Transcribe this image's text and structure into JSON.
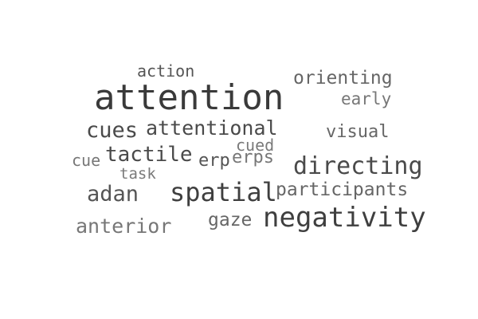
{
  "words": [
    {
      "text": "action",
      "color": "#555555"
    },
    {
      "text": "attention",
      "color": "#3a3a3a"
    },
    {
      "text": "orienting",
      "color": "#666666"
    },
    {
      "text": "early",
      "color": "#777777"
    },
    {
      "text": "cues",
      "color": "#4a4a4a"
    },
    {
      "text": "attentional",
      "color": "#4a4a4a"
    },
    {
      "text": "visual",
      "color": "#666666"
    },
    {
      "text": "cued",
      "color": "#7a7a7a"
    },
    {
      "text": "cue",
      "color": "#777777"
    },
    {
      "text": "tactile",
      "color": "#4a4a4a"
    },
    {
      "text": "erp",
      "color": "#555555"
    },
    {
      "text": "erps",
      "color": "#777777"
    },
    {
      "text": "directing",
      "color": "#4a4a4a"
    },
    {
      "text": "task",
      "color": "#7a7a7a"
    },
    {
      "text": "adan",
      "color": "#555555"
    },
    {
      "text": "spatial",
      "color": "#3f3f3f"
    },
    {
      "text": "participants",
      "color": "#666666"
    },
    {
      "text": "anterior",
      "color": "#777777"
    },
    {
      "text": "gaze",
      "color": "#666666"
    },
    {
      "text": "negativity",
      "color": "#3f3f3f"
    }
  ]
}
